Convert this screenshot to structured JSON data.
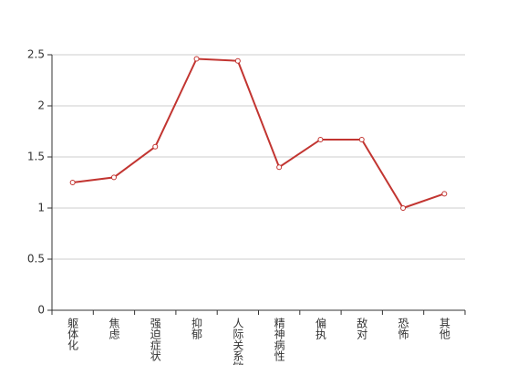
{
  "chart_data": {
    "type": "line",
    "categories": [
      "躯体化",
      "焦虑",
      "强迫症状",
      "抑郁",
      "人际关系敏感",
      "精神病性",
      "偏执",
      "敌对",
      "恐怖",
      "其他"
    ],
    "series": [
      {
        "color": "#c23531",
        "values": [
          1.25,
          1.3,
          1.6,
          2.46,
          2.44,
          1.4,
          1.67,
          1.67,
          1.0,
          1.14
        ]
      }
    ],
    "ylim": [
      0,
      2.5
    ],
    "yticks": [
      0,
      0.5,
      1,
      1.5,
      2,
      2.5
    ],
    "grid": true
  }
}
